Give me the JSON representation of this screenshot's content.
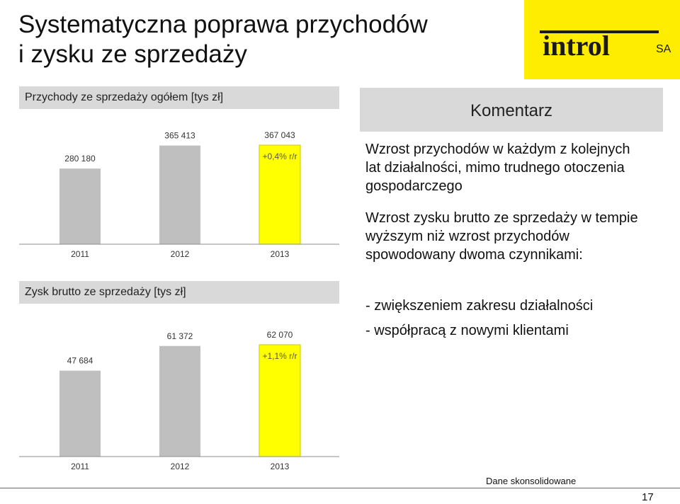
{
  "slide": {
    "title_line1": "Systematyczna poprawa przychodów",
    "title_line2": "i zysku ze sprzedaży",
    "logo_text": "introl",
    "logo_suffix": "SA",
    "footnote": "Dane skonsolidowane",
    "page_number": "17"
  },
  "colors": {
    "bar_gray": "#bfbfbf",
    "bar_highlight": "#ffff00",
    "bar_highlight_edge": "#c8c800",
    "logo_yellow": "#ffed00",
    "panel_gray": "#d9d9d9"
  },
  "comment": {
    "header": "Komentarz",
    "p1": "Wzrost przychodów w każdym z kolejnych lat działalności, mimo trudnego otoczenia gospodarczego",
    "p2": "Wzrost zysku brutto ze sprzedaży w tempie wyższym niż wzrost przychodów spowodowany dwoma czynnikami:",
    "p3": "- zwiększeniem zakresu działalności",
    "p4": "- współpracą z nowymi klientami"
  },
  "chart_data": [
    {
      "type": "bar",
      "title": "Przychody ze sprzedaży ogółem [tys zł]",
      "categories": [
        "2011",
        "2012",
        "2013"
      ],
      "values": [
        280180,
        365413,
        367043
      ],
      "value_labels": [
        "280 180",
        "365 413",
        "367 043"
      ],
      "annotation": "+0,4% r/r",
      "highlight_index": 2,
      "ylim": [
        0,
        367043
      ],
      "grid": false,
      "legend": "none"
    },
    {
      "type": "bar",
      "title": "Zysk brutto ze sprzedaży [tys zł]",
      "categories": [
        "2011",
        "2012",
        "2013"
      ],
      "values": [
        47684,
        61372,
        62070
      ],
      "value_labels": [
        "47 684",
        "61 372",
        "62 070"
      ],
      "annotation": "+1,1% r/r",
      "highlight_index": 2,
      "ylim": [
        0,
        62070
      ],
      "grid": false,
      "legend": "none"
    }
  ]
}
